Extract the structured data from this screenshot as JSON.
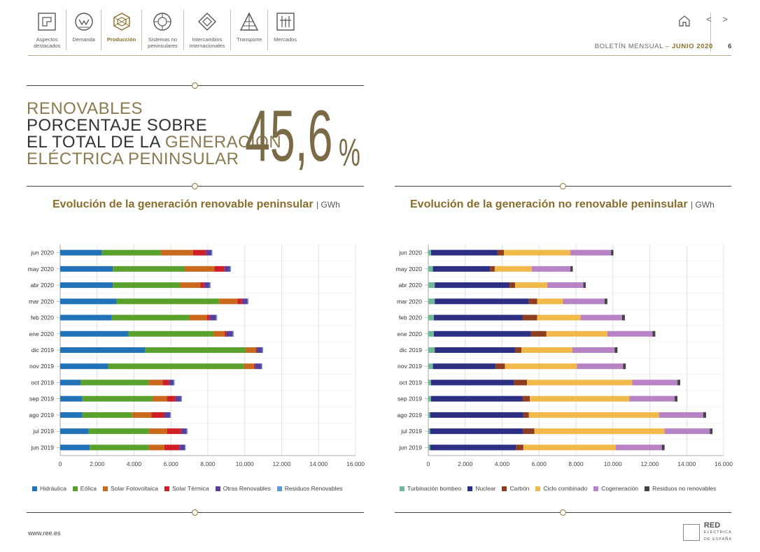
{
  "nav": {
    "items": [
      {
        "label": "Aspectos\ndestacados",
        "icon": "highlights-icon",
        "active": false
      },
      {
        "label": "Demanda",
        "icon": "demand-icon",
        "active": false
      },
      {
        "label": "Producción",
        "icon": "production-icon",
        "active": true
      },
      {
        "label": "Sistemas no\npeninsulares",
        "icon": "islands-icon",
        "active": false
      },
      {
        "label": "Intercambios\ninternacionales",
        "icon": "exchange-icon",
        "active": false
      },
      {
        "label": "Transporte",
        "icon": "transport-icon",
        "active": false
      },
      {
        "label": "Mercados",
        "icon": "markets-icon",
        "active": false
      }
    ]
  },
  "header": {
    "bulletin_label": "BOLETÍN MENSUAL",
    "separator": "–",
    "month": "JUNIO 2020",
    "page": "6",
    "arrows": "< >"
  },
  "headline": {
    "line1": "RENOVABLES",
    "line2": "PORCENTAJE SOBRE",
    "line3a": "EL TOTAL DE LA ",
    "line3b": "GENERACIÓN",
    "line4": "ELÉCTRICA PENINSULAR",
    "value": "45,6",
    "pct": "%"
  },
  "chart_data": [
    {
      "type": "bar",
      "orientation": "horizontal",
      "stacked": true,
      "title": "Evolución de la generación renovable peninsular",
      "unit": "GWh",
      "categories": [
        "jun 2020",
        "may 2020",
        "abr 2020",
        "mar 2020",
        "feb 2020",
        "ene 2020",
        "dic 2019",
        "nov 2019",
        "oct 2019",
        "sep 2019",
        "ago 2019",
        "jul 2019",
        "jun 2019"
      ],
      "xlim": [
        0,
        16000
      ],
      "xticks": [
        "0",
        "2.000",
        "4.000",
        "6.000",
        "8.000",
        "10.000",
        "12.000",
        "14.000",
        "16.000"
      ],
      "grid": true,
      "legend": "bottom",
      "series": [
        {
          "name": "Hidráulica",
          "color": "#2272b8",
          "values": [
            2250,
            2850,
            2850,
            3050,
            2800,
            3700,
            4600,
            2600,
            1100,
            1200,
            1200,
            1550,
            1600
          ]
        },
        {
          "name": "Eólica",
          "color": "#5aa02c",
          "values": [
            3200,
            3900,
            3650,
            5550,
            4200,
            4600,
            5450,
            7350,
            3700,
            3800,
            2700,
            3250,
            3200
          ]
        },
        {
          "name": "Solar Fotovoltaica",
          "color": "#c8691c",
          "values": [
            1750,
            1600,
            1100,
            1000,
            950,
            600,
            550,
            550,
            750,
            800,
            1050,
            1000,
            850
          ]
        },
        {
          "name": "Solar Térmica",
          "color": "#d01f26",
          "values": [
            700,
            550,
            200,
            250,
            150,
            100,
            50,
            50,
            350,
            450,
            700,
            750,
            800
          ]
        },
        {
          "name": "Otras Renovables",
          "color": "#5b3f98",
          "values": [
            300,
            300,
            300,
            300,
            350,
            350,
            300,
            350,
            250,
            300,
            300,
            300,
            300
          ]
        },
        {
          "name": "Residuos Renovables",
          "color": "#5d9bd5",
          "values": [
            50,
            50,
            50,
            50,
            50,
            50,
            50,
            50,
            50,
            50,
            50,
            50,
            50
          ]
        }
      ]
    },
    {
      "type": "bar",
      "orientation": "horizontal",
      "stacked": true,
      "title": "Evolución de la generación no renovable peninsular",
      "unit": "GWh",
      "categories": [
        "jun 2020",
        "may 2020",
        "abr 2020",
        "mar 2020",
        "feb 2020",
        "ene 2020",
        "dic 2019",
        "nov 2019",
        "oct 2019",
        "sep 2019",
        "ago 2019",
        "jul 2019",
        "jun 2019"
      ],
      "xlim": [
        0,
        16000
      ],
      "xticks": [
        "0",
        "2.000",
        "4.000",
        "6.000",
        "8.000",
        "10.000",
        "12.000",
        "14.000",
        "16.000"
      ],
      "grid": true,
      "legend": "bottom",
      "series": [
        {
          "name": "Turbinación bombeo",
          "color": "#6fb89a",
          "values": [
            150,
            250,
            350,
            350,
            300,
            300,
            350,
            250,
            150,
            150,
            100,
            100,
            100
          ]
        },
        {
          "name": "Nuclear",
          "color": "#2d2f83",
          "values": [
            3600,
            3100,
            4050,
            5100,
            4800,
            5250,
            4350,
            3400,
            4500,
            4950,
            5050,
            5050,
            4650
          ]
        },
        {
          "name": "Carbón",
          "color": "#8c3d22",
          "values": [
            350,
            250,
            300,
            450,
            800,
            850,
            350,
            500,
            700,
            400,
            300,
            600,
            400
          ]
        },
        {
          "name": "Ciclo combinado",
          "color": "#f0b94a",
          "values": [
            3600,
            2000,
            1750,
            1400,
            2350,
            3300,
            2750,
            3900,
            5700,
            5400,
            7050,
            7050,
            5000
          ]
        },
        {
          "name": "Cogeneración",
          "color": "#b783c5",
          "values": [
            2200,
            2100,
            1950,
            2250,
            2250,
            2450,
            2300,
            2500,
            2450,
            2450,
            2400,
            2450,
            2500
          ]
        },
        {
          "name": "Residuos no renovables",
          "color": "#444444",
          "values": [
            130,
            130,
            130,
            150,
            150,
            150,
            150,
            150,
            150,
            150,
            150,
            150,
            150
          ]
        }
      ]
    }
  ],
  "footer": {
    "url": "www.ree.es",
    "logo_line1": "RED",
    "logo_line2": "ELÉCTRICA",
    "logo_line3": "DE ESPAÑA"
  }
}
